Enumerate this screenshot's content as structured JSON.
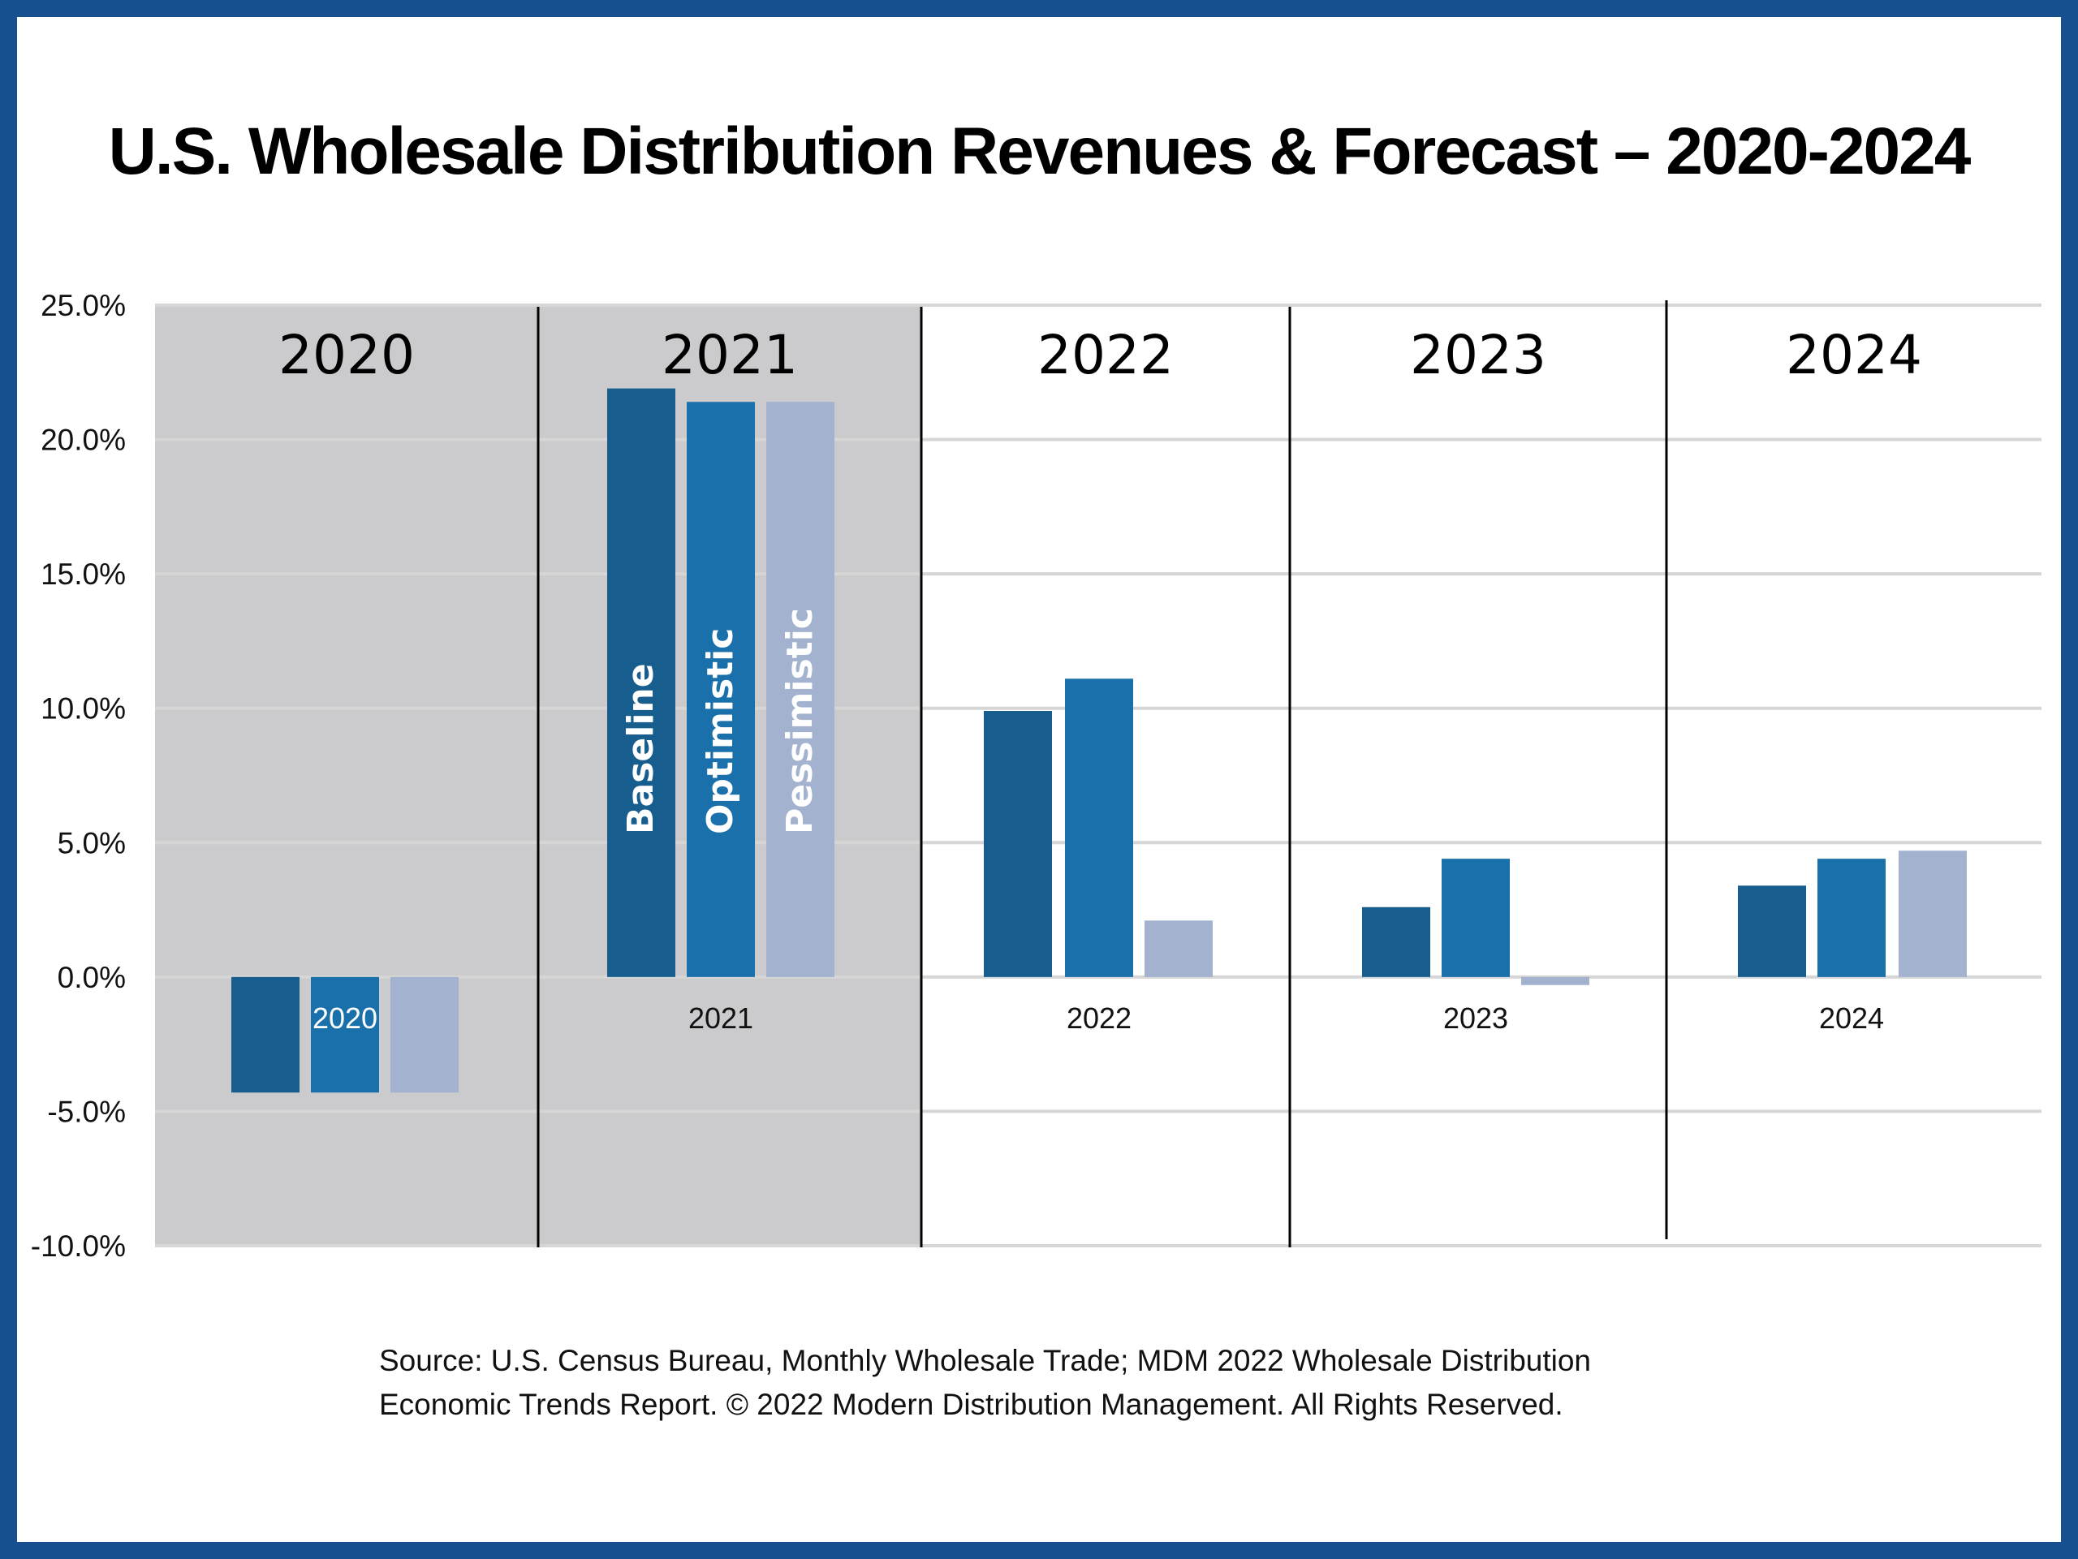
{
  "title": "U.S. Wholesale Distribution Revenues & Forecast – 2020-2024",
  "source_lines": [
    "Source: U.S. Census Bureau, Monthly Wholesale Trade; MDM 2022 Wholesale Distribution",
    "Economic Trends Report. © 2022 Modern Distribution Management. All Rights Reserved."
  ],
  "colors": {
    "border": "#17508f",
    "baseline": "#175d8e",
    "optimistic": "#1a70ab",
    "pessimistic": "#a3b2cf",
    "historical_shading": "#cbcbcd"
  },
  "chart_data": {
    "type": "bar",
    "title": "U.S. Wholesale Distribution Revenues & Forecast – 2020-2024",
    "categories": [
      "2020",
      "2021",
      "2022",
      "2023",
      "2024"
    ],
    "column_headers": [
      "2020",
      "2021",
      "2022",
      "2023",
      "2024"
    ],
    "historical_shaded": [
      "2020",
      "2021"
    ],
    "series": [
      {
        "name": "Baseline",
        "values": [
          -4.3,
          21.9,
          9.9,
          2.6,
          3.4
        ]
      },
      {
        "name": "Optimistic",
        "values": [
          -4.3,
          21.4,
          11.1,
          4.4,
          4.4
        ]
      },
      {
        "name": "Pessimistic",
        "values": [
          -4.3,
          21.4,
          2.1,
          -0.3,
          4.7
        ]
      }
    ],
    "ylim": [
      -10,
      25
    ],
    "yticks": [
      "25.0%",
      "20.0%",
      "15.0%",
      "10.0%",
      "5.0%",
      "0.0%",
      "-5.0%",
      "-10.0%"
    ],
    "ytick_values": [
      25,
      20,
      15,
      10,
      5,
      0,
      -5,
      -10
    ],
    "grid": true,
    "xlabel": "",
    "ylabel": ""
  }
}
